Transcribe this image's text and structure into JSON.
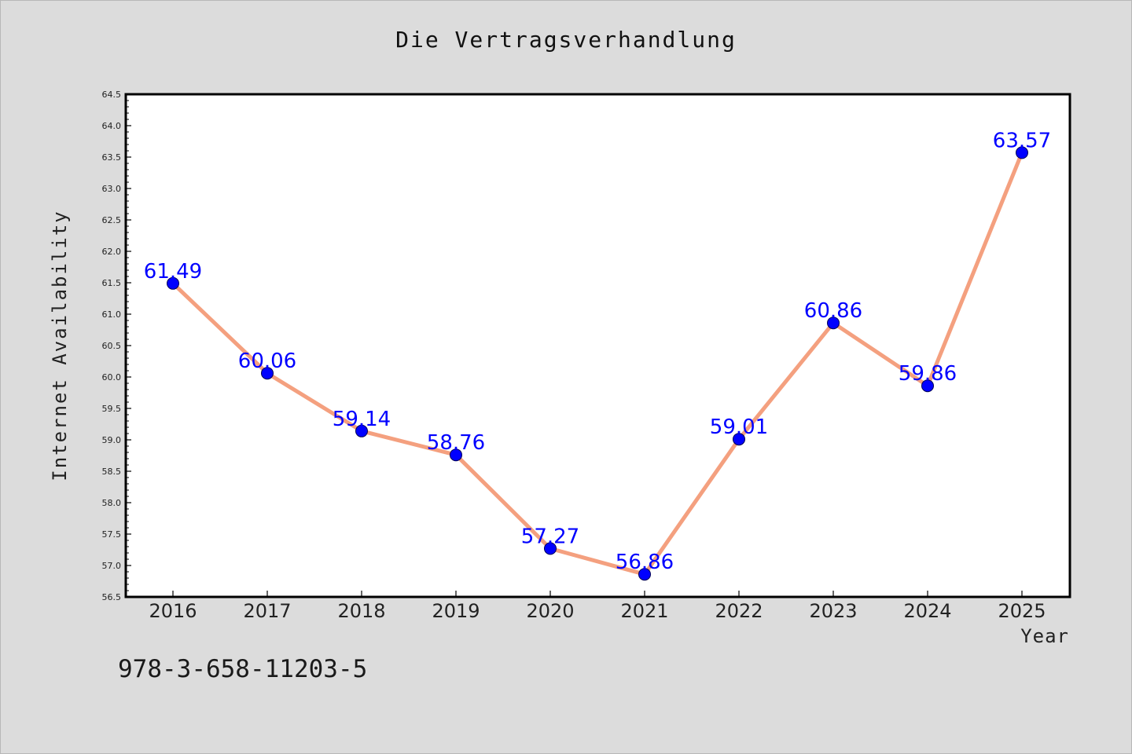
{
  "chart_data": {
    "type": "line",
    "title": "Die Vertragsverhandlung",
    "xlabel": "Year",
    "ylabel": "Internet Availability",
    "x": [
      "2016",
      "2017",
      "2018",
      "2019",
      "2020",
      "2021",
      "2022",
      "2023",
      "2024",
      "2025"
    ],
    "series": [
      {
        "values": [
          61.49,
          60.06,
          59.14,
          58.76,
          57.27,
          56.86,
          59.01,
          60.86,
          59.86,
          63.57
        ]
      }
    ],
    "data_labels": [
      "61.49",
      "60.06",
      "59.14",
      "58.76",
      "57.27",
      "56.86",
      "59.01",
      "60.86",
      "59.86",
      "63.57"
    ],
    "ylim": [
      56.5,
      64.5
    ],
    "yticks": [
      "56.5",
      "57.0",
      "57.5",
      "58.0",
      "58.5",
      "59.0",
      "59.5",
      "60.0",
      "60.5",
      "61.0",
      "61.5",
      "62.0",
      "62.5",
      "63.0",
      "63.5",
      "64.0",
      "64.5"
    ],
    "grid": false,
    "line_color": "#f4a07f",
    "marker_color": "#0000ff",
    "label_color": "#0000ff"
  },
  "footer": {
    "isbn": "978-3-658-11203-5"
  }
}
